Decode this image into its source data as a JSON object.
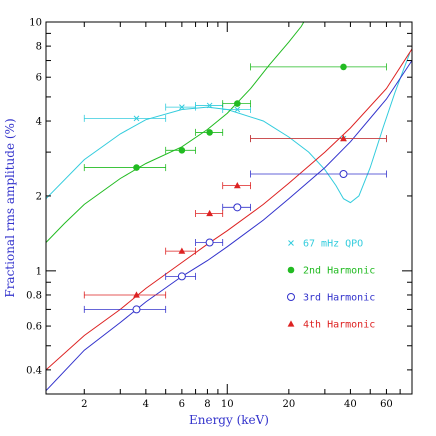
{
  "chart_data": {
    "type": "scatter",
    "xlabel": "Energy (keV)",
    "ylabel": "Fractional rms amplitude (%)",
    "xscale": "log",
    "yscale": "log",
    "xlim": [
      1.3,
      80
    ],
    "ylim": [
      0.32,
      10
    ],
    "x_ticks": [
      2,
      4,
      6,
      8,
      10,
      20,
      40,
      60
    ],
    "y_ticks": [
      0.4,
      0.6,
      0.8,
      1,
      2,
      4,
      6,
      8,
      10
    ],
    "legend_position": "right",
    "series": [
      {
        "name": "67 mHz QPO",
        "marker": "x",
        "color": "#33ccdd",
        "points": [
          {
            "x": 3.6,
            "y": 4.1,
            "xerr": [
              2.0,
              5.0
            ]
          },
          {
            "x": 6.0,
            "y": 4.55,
            "xerr": [
              5.0,
              7.0
            ]
          },
          {
            "x": 8.2,
            "y": 4.62,
            "xerr": [
              7.0,
              9.5
            ]
          },
          {
            "x": 11.2,
            "y": 4.45,
            "xerr": [
              9.5,
              13.0
            ]
          },
          {
            "x": 37,
            "y": 3.4,
            "xerr": [
              13.0,
              60
            ]
          }
        ],
        "curve": [
          [
            1.3,
            1.95
          ],
          [
            2,
            2.8
          ],
          [
            3,
            3.55
          ],
          [
            4,
            4.05
          ],
          [
            6,
            4.45
          ],
          [
            8,
            4.55
          ],
          [
            10,
            4.45
          ],
          [
            15,
            4.0
          ],
          [
            20,
            3.45
          ],
          [
            25,
            3.0
          ],
          [
            30,
            2.55
          ],
          [
            34,
            2.2
          ],
          [
            37,
            1.95
          ],
          [
            40,
            1.88
          ],
          [
            44,
            2.0
          ],
          [
            50,
            2.6
          ],
          [
            58,
            3.8
          ],
          [
            66,
            5.2
          ],
          [
            73,
            6.5
          ],
          [
            78,
            7.5
          ]
        ]
      },
      {
        "name": "2nd Harmonic",
        "marker": "filled-circle",
        "color": "#22bb22",
        "points": [
          {
            "x": 3.6,
            "y": 2.6,
            "xerr": [
              2.0,
              5.0
            ]
          },
          {
            "x": 6.0,
            "y": 3.05,
            "xerr": [
              5.0,
              7.0
            ]
          },
          {
            "x": 8.2,
            "y": 3.6,
            "xerr": [
              7.0,
              9.5
            ]
          },
          {
            "x": 11.2,
            "y": 4.7,
            "xerr": [
              9.5,
              13.0
            ]
          },
          {
            "x": 37,
            "y": 6.6,
            "xerr": [
              13.0,
              60
            ]
          }
        ],
        "curve": [
          [
            1.3,
            1.3
          ],
          [
            1.6,
            1.55
          ],
          [
            2,
            1.85
          ],
          [
            3,
            2.35
          ],
          [
            4,
            2.7
          ],
          [
            6,
            3.15
          ],
          [
            8,
            3.7
          ],
          [
            10,
            4.3
          ],
          [
            13,
            5.4
          ],
          [
            16,
            6.7
          ],
          [
            20,
            8.3
          ],
          [
            23,
            9.6
          ],
          [
            24,
            10.2
          ]
        ]
      },
      {
        "name": "3rd Harmonic",
        "marker": "open-circle",
        "color": "#3333cc",
        "points": [
          {
            "x": 3.6,
            "y": 0.7,
            "xerr": [
              2.0,
              5.0
            ]
          },
          {
            "x": 6.0,
            "y": 0.95,
            "xerr": [
              5.0,
              7.0
            ]
          },
          {
            "x": 8.2,
            "y": 1.3,
            "xerr": [
              7.0,
              9.5
            ]
          },
          {
            "x": 11.2,
            "y": 1.8,
            "xerr": [
              9.5,
              13.0
            ]
          },
          {
            "x": 37,
            "y": 2.45,
            "xerr": [
              13.0,
              60
            ]
          }
        ],
        "curve": [
          [
            1.3,
            0.33
          ],
          [
            2,
            0.48
          ],
          [
            3,
            0.62
          ],
          [
            4,
            0.75
          ],
          [
            6,
            0.95
          ],
          [
            8,
            1.1
          ],
          [
            10,
            1.25
          ],
          [
            15,
            1.6
          ],
          [
            20,
            1.95
          ],
          [
            30,
            2.6
          ],
          [
            40,
            3.3
          ],
          [
            60,
            4.9
          ],
          [
            80,
            7.0
          ]
        ]
      },
      {
        "name": "4th Harmonic",
        "marker": "filled-triangle",
        "color": "#dd2222",
        "points": [
          {
            "x": 3.6,
            "y": 0.8,
            "xerr": [
              2.0,
              5.0
            ]
          },
          {
            "x": 6.0,
            "y": 1.2,
            "xerr": [
              5.0,
              7.0
            ]
          },
          {
            "x": 8.2,
            "y": 1.7,
            "xerr": [
              7.0,
              9.5
            ]
          },
          {
            "x": 11.2,
            "y": 2.2,
            "xerr": [
              9.5,
              13.0
            ]
          },
          {
            "x": 37,
            "y": 3.4,
            "xerr": [
              13.0,
              60
            ]
          }
        ],
        "curve": [
          [
            1.3,
            0.4
          ],
          [
            2,
            0.55
          ],
          [
            3,
            0.7
          ],
          [
            4,
            0.85
          ],
          [
            6,
            1.08
          ],
          [
            8,
            1.28
          ],
          [
            10,
            1.45
          ],
          [
            15,
            1.85
          ],
          [
            20,
            2.25
          ],
          [
            30,
            3.0
          ],
          [
            40,
            3.75
          ],
          [
            60,
            5.4
          ],
          [
            80,
            7.8
          ]
        ]
      }
    ]
  }
}
